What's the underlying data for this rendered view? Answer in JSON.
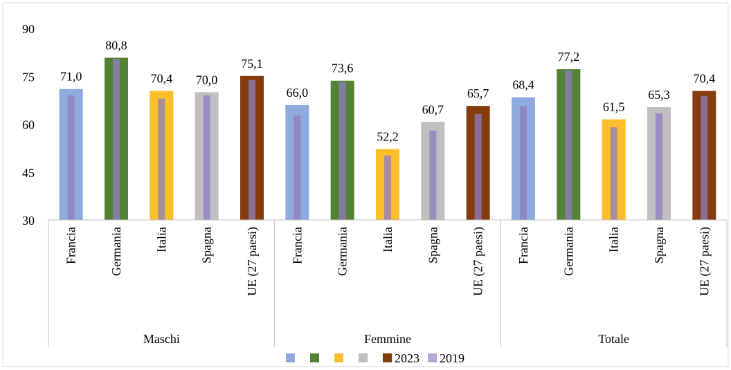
{
  "chart_data": {
    "type": "bar",
    "groups": [
      {
        "label": "Maschi",
        "categories": [
          "Francia",
          "Germania",
          "Italia",
          "Spagna",
          "UE (27 paesi)"
        ]
      },
      {
        "label": "Femmine",
        "categories": [
          "Francia",
          "Germania",
          "Italia",
          "Spagna",
          "UE (27 paesi)"
        ]
      },
      {
        "label": "Totale",
        "categories": [
          "Francia",
          "Germania",
          "Italia",
          "Spagna",
          "UE (27 paesi)"
        ]
      }
    ],
    "series": [
      {
        "name": "2023",
        "values": [
          71.0,
          80.8,
          70.4,
          70.0,
          75.1,
          66.0,
          73.6,
          52.2,
          60.7,
          65.7,
          68.4,
          77.2,
          61.5,
          65.3,
          70.4
        ],
        "data_labels": [
          "71,0",
          "80,8",
          "70,4",
          "70,0",
          "75,1",
          "66,0",
          "73,6",
          "52,2",
          "60,7",
          "65,7",
          "68,4",
          "77,2",
          "61,5",
          "65,3",
          "70,4"
        ],
        "colors": [
          "#8faadc",
          "#548235",
          "#fbbf2b",
          "#bfbfbf",
          "#843c0c"
        ]
      },
      {
        "name": "2019",
        "values": [
          69.0,
          80.5,
          68.0,
          69.0,
          73.8,
          62.7,
          73.2,
          50.2,
          58.0,
          63.2,
          65.7,
          76.8,
          59.0,
          63.4,
          68.8
        ],
        "color": "#8e7cc3"
      }
    ],
    "ylim": [
      30,
      90
    ],
    "yticks": [
      30,
      45,
      60,
      75,
      90
    ],
    "ytick_labels": [
      "30",
      "45",
      "60",
      "75",
      "90"
    ],
    "grid": false,
    "legend": {
      "position": "bottom",
      "swatch_colors": [
        "#8faadc",
        "#548235",
        "#fbbf2b",
        "#bfbfbf",
        "#843c0c",
        "#b4a7d6"
      ],
      "labels": [
        "",
        "",
        "",
        "",
        "2023",
        "2019"
      ]
    },
    "colors": {
      "axis": "#bfbfbf",
      "frame": "#d9d9d9",
      "text": "#000000"
    }
  }
}
